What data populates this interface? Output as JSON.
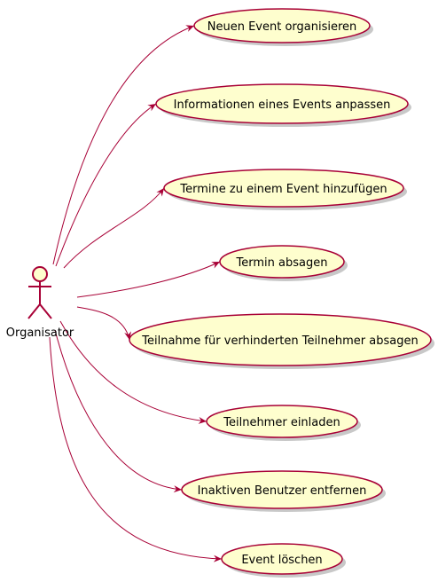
{
  "diagram": {
    "type": "use-case",
    "actor": {
      "label": "Organisator"
    },
    "use_cases": [
      {
        "id": "uc1",
        "label": "Neuen Event organisieren"
      },
      {
        "id": "uc2",
        "label": "Informationen eines Events anpassen"
      },
      {
        "id": "uc3",
        "label": "Termine zu einem Event hinzufügen"
      },
      {
        "id": "uc4",
        "label": "Termin absagen"
      },
      {
        "id": "uc5",
        "label": "Teilnahme für verhinderten Teilnehmer absagen"
      },
      {
        "id": "uc6",
        "label": "Teilnehmer einladen"
      },
      {
        "id": "uc7",
        "label": "Inaktiven Benutzer entfernen"
      },
      {
        "id": "uc8",
        "label": "Event löschen"
      }
    ]
  },
  "colors": {
    "ellipse_fill": "#FEFECE",
    "stroke": "#A80036",
    "shadow": "#C8C8C8",
    "text": "#000000"
  }
}
